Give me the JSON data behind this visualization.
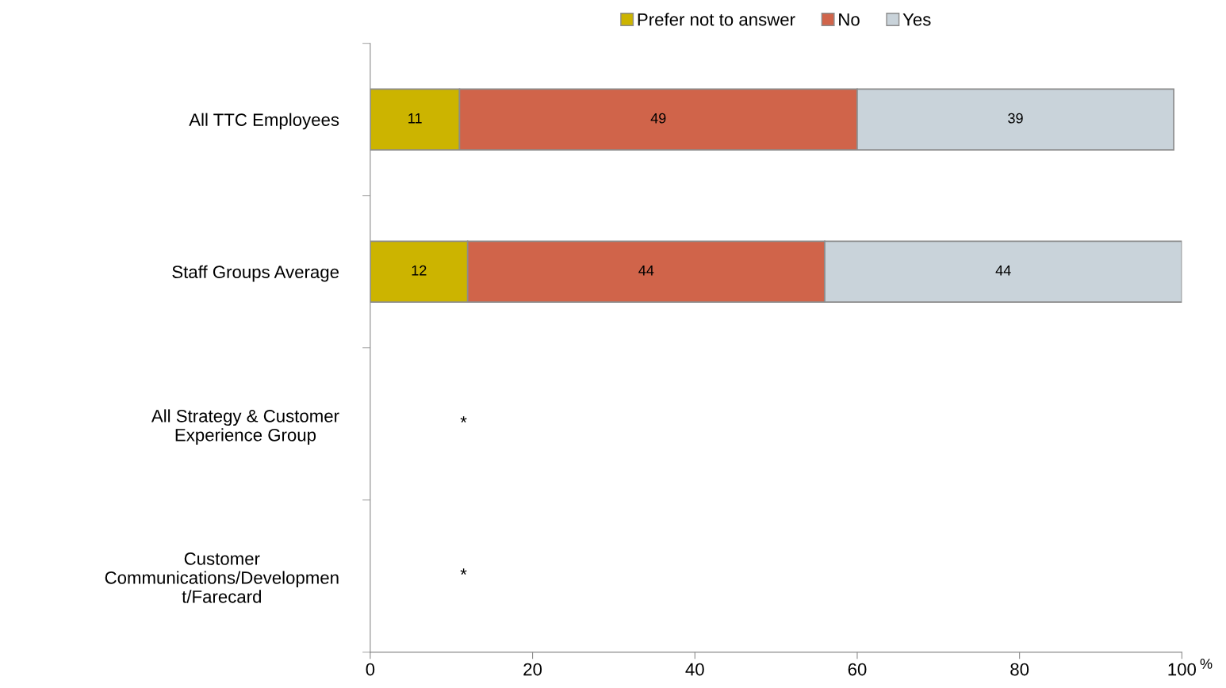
{
  "chart_data": {
    "type": "bar",
    "orientation": "horizontal",
    "stacked": true,
    "categories": [
      "All TTC Employees",
      "Staff Groups Average",
      "All Strategy & Customer\nExperience Group",
      "Customer\nCommunications/Developmen\nt/Farecard"
    ],
    "series": [
      {
        "name": "Prefer not to answer",
        "color": "#ccb400",
        "values": [
          11,
          12,
          null,
          null
        ]
      },
      {
        "name": "No",
        "color": "#d0644a",
        "values": [
          49,
          44,
          null,
          null
        ]
      },
      {
        "name": "Yes",
        "color": "#c9d3da",
        "values": [
          39,
          44,
          null,
          null
        ]
      }
    ],
    "xlim": [
      0,
      100
    ],
    "xticks": [
      0,
      20,
      40,
      60,
      80,
      100
    ],
    "xlabel": "%",
    "data_labels": true,
    "legend": "top",
    "grid": false,
    "annotations": [
      "*",
      "*"
    ]
  }
}
